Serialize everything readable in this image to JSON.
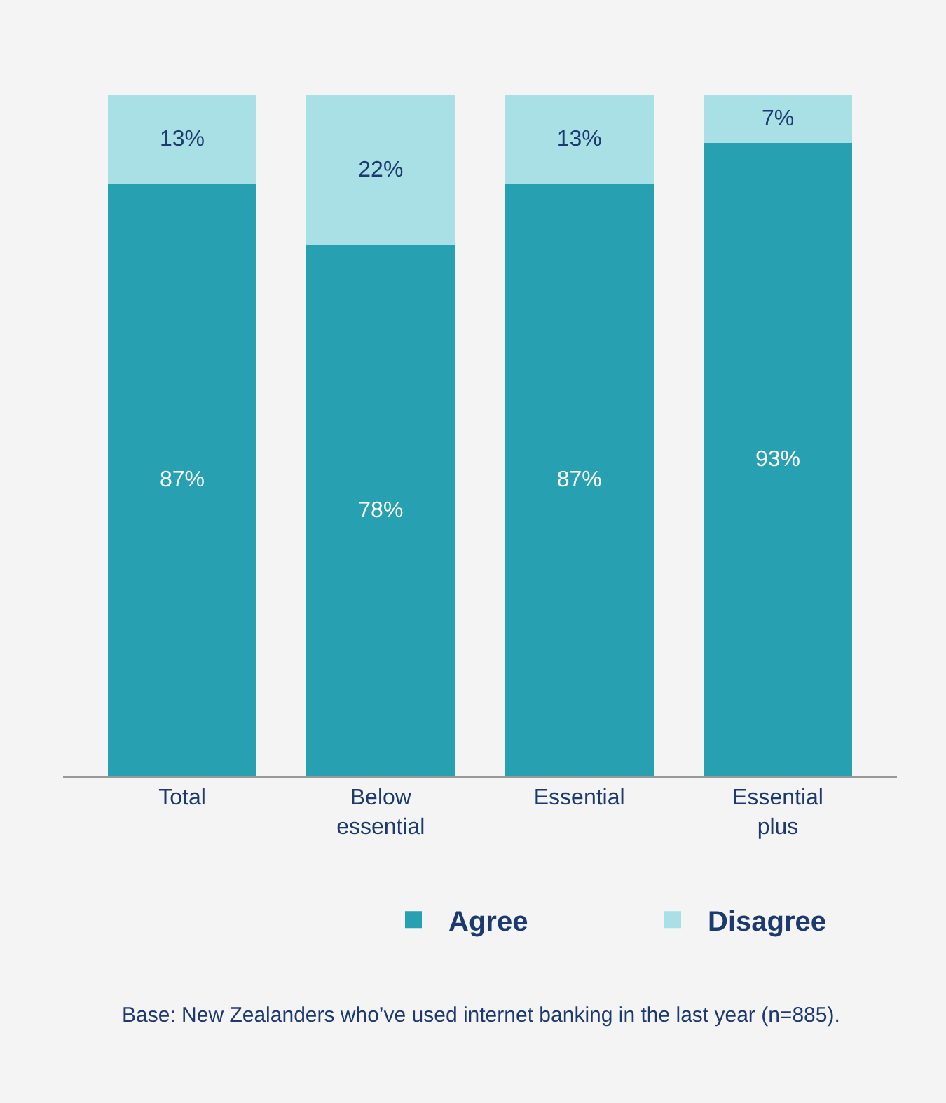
{
  "chart_data": {
    "type": "bar",
    "stacked": true,
    "categories": [
      "Total",
      "Below essential",
      "Essential",
      "Essential plus"
    ],
    "ylim": [
      0,
      100
    ],
    "legend": "bottom right",
    "annotations": [
      "Base: New Zealanders who’ve used internet banking in the last year (n=885)."
    ],
    "series": [
      {
        "name": "Agree",
        "color": "#27a1b1",
        "values": [
          87,
          78,
          87,
          93
        ],
        "value_labels": [
          "87%",
          "78%",
          "87%",
          "93%"
        ]
      },
      {
        "name": "Disagree",
        "color": "#a8e0e5",
        "values": [
          13,
          22,
          13,
          7
        ],
        "value_labels": [
          "13%",
          "22%",
          "13%",
          "7%"
        ]
      }
    ]
  }
}
